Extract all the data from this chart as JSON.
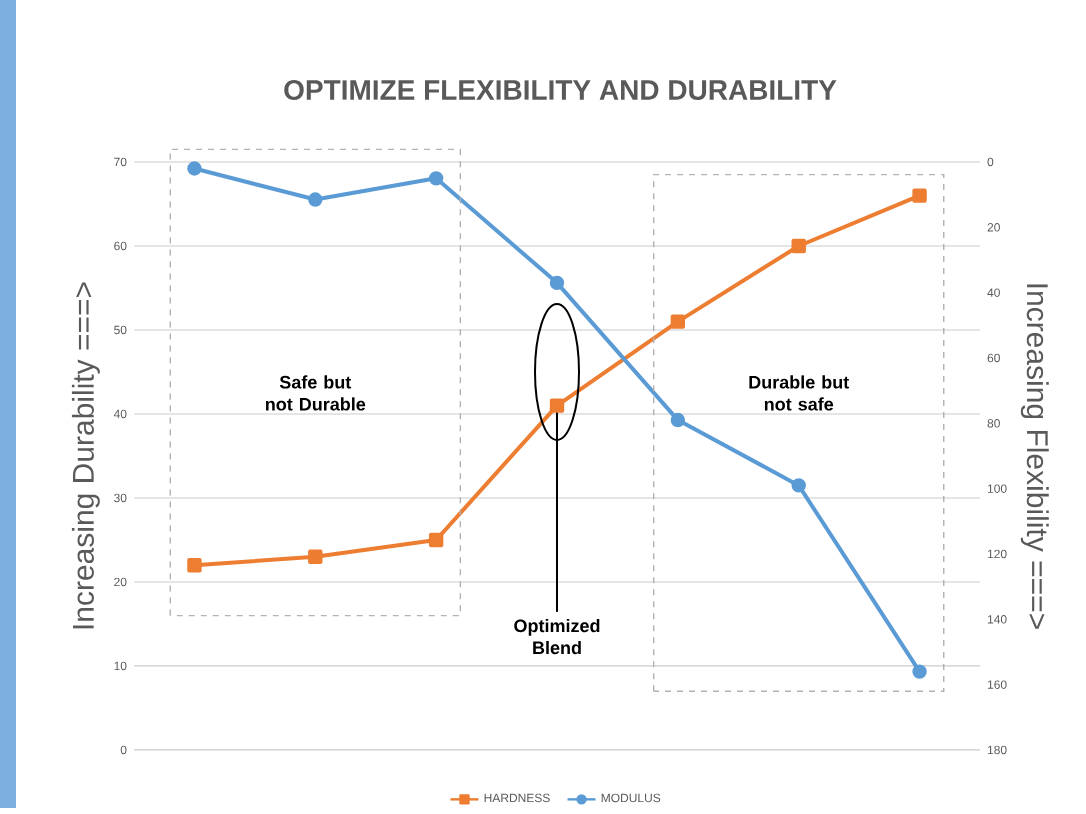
{
  "chart_data": {
    "type": "line",
    "title": "OPTIMIZE FLEXIBILITY AND DURABILITY",
    "ylabel": "Increasing Durability ===>",
    "y2label": "Increasing Flexibility ===>",
    "categories": [
      null,
      null,
      null,
      null,
      null,
      null,
      null
    ],
    "series": [
      {
        "name": "HARDNESS",
        "color": "#ed7d31",
        "marker": "square",
        "values": [
          22,
          23,
          25,
          41,
          51,
          60,
          66
        ]
      },
      {
        "name": "MODULUS",
        "color": "#5b9bd5",
        "marker": "circle",
        "axis": "y2",
        "values": [
          2,
          11.5,
          5,
          37,
          79,
          99,
          156
        ]
      }
    ],
    "ylim": [
      0,
      70
    ],
    "yticks": [
      0,
      10,
      20,
      30,
      40,
      50,
      60,
      70
    ],
    "y2lim": [
      180,
      0
    ],
    "y2ticks": [
      0,
      20,
      40,
      60,
      80,
      100,
      120,
      140,
      160,
      180
    ],
    "grid": "y",
    "legend": "bottom",
    "annotations": [
      "Safe but not Durable",
      "Durable but not safe",
      {
        "text": "Optimized Blend",
        "y": 41
      }
    ]
  }
}
